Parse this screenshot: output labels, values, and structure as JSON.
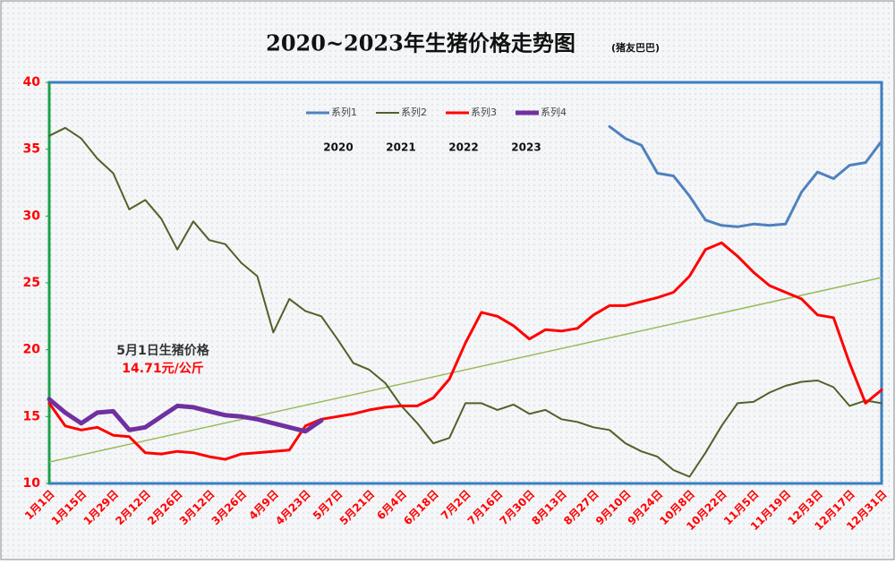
{
  "chart_data": {
    "type": "line",
    "title": "2020~2023年生猪价格走势图",
    "subtitle": "(猪友巴巴)",
    "categories": [
      "1月1日",
      null,
      "1月15日",
      null,
      "1月29日",
      null,
      "2月12日",
      null,
      "2月26日",
      null,
      "3月12日",
      null,
      "3月26日",
      null,
      "4月9日",
      null,
      "4月23日",
      null,
      "5月7日",
      null,
      "5月21日",
      null,
      "6月4日",
      null,
      "6月18日",
      null,
      "7月2日",
      null,
      "7月16日",
      null,
      "7月30日",
      null,
      "8月13日",
      null,
      "8月27日",
      null,
      "9月10日",
      null,
      "9月24日",
      null,
      "10月8日",
      null,
      "10月22日",
      null,
      "11月5日",
      null,
      "11月19日",
      null,
      "12月3日",
      null,
      "12月17日",
      null,
      "12月31日"
    ],
    "series": [
      {
        "name": "系列1",
        "color": "#4f81bd",
        "width": 3,
        "values": [
          null,
          null,
          null,
          null,
          null,
          null,
          null,
          null,
          null,
          null,
          null,
          null,
          null,
          null,
          null,
          null,
          null,
          null,
          null,
          null,
          null,
          null,
          null,
          null,
          null,
          null,
          null,
          null,
          null,
          null,
          null,
          null,
          null,
          null,
          null,
          36.7,
          35.8,
          35.3,
          33.2,
          33.0,
          31.5,
          29.7,
          29.3,
          29.2,
          29.4,
          29.3,
          29.4,
          31.8,
          33.3,
          32.8,
          33.8,
          34.0,
          35.6
        ]
      },
      {
        "name": "系列2",
        "color": "#4f6228",
        "width": 2,
        "values": [
          36.0,
          36.6,
          35.8,
          34.3,
          33.2,
          30.5,
          31.2,
          29.8,
          27.5,
          29.6,
          28.2,
          27.9,
          26.5,
          25.5,
          21.3,
          23.8,
          22.9,
          22.5,
          20.8,
          19.0,
          18.5,
          17.5,
          15.8,
          14.5,
          13.0,
          13.4,
          16.0,
          16.0,
          15.5,
          15.9,
          15.2,
          15.5,
          14.8,
          14.6,
          14.2,
          14.0,
          13.0,
          12.4,
          12.0,
          11.0,
          10.5,
          12.3,
          14.3,
          16.0,
          16.1,
          16.8,
          17.3,
          17.6,
          17.7,
          17.2,
          15.8,
          16.2,
          16.0
        ]
      },
      {
        "name": "系列3",
        "color": "#ff0000",
        "width": 3,
        "values": [
          16.0,
          14.3,
          14.0,
          14.2,
          13.6,
          13.5,
          12.3,
          12.2,
          12.4,
          12.3,
          12.0,
          11.8,
          12.2,
          12.3,
          12.4,
          12.5,
          14.3,
          14.8,
          15.0,
          15.2,
          15.5,
          15.7,
          15.8,
          15.8,
          16.4,
          17.8,
          20.5,
          22.8,
          22.5,
          21.8,
          20.8,
          21.5,
          21.4,
          21.6,
          22.6,
          23.3,
          23.3,
          23.6,
          23.9,
          24.3,
          25.5,
          27.5,
          28.0,
          27.0,
          25.8,
          24.8,
          24.3,
          23.8,
          22.6,
          22.4,
          19.0,
          16.0,
          17.0
        ]
      },
      {
        "name": "系列4",
        "color": "#7030a0",
        "width": 5,
        "values": [
          16.3,
          15.3,
          14.5,
          15.3,
          15.4,
          14.0,
          14.2,
          15.0,
          15.8,
          15.7,
          15.4,
          15.1,
          15.0,
          14.8,
          14.5,
          14.2,
          13.9,
          14.71,
          null,
          null,
          null,
          null,
          null,
          null,
          null,
          null,
          null,
          null,
          null,
          null,
          null,
          null,
          null,
          null,
          null,
          null,
          null,
          null,
          null,
          null,
          null,
          null,
          null,
          null,
          null,
          null,
          null,
          null,
          null,
          null,
          null,
          null,
          null
        ]
      }
    ],
    "trendline": {
      "color": "#9bbb59",
      "start": 11.6,
      "end": 25.4
    },
    "year_labels": [
      "2020",
      "2021",
      "2022",
      "2023"
    ],
    "annotation": {
      "title": "5月1日生猪价格",
      "value": "14.71元/公斤"
    },
    "ylim": [
      10,
      40
    ],
    "yticks": [
      10,
      15,
      20,
      25,
      30,
      35,
      40
    ]
  }
}
